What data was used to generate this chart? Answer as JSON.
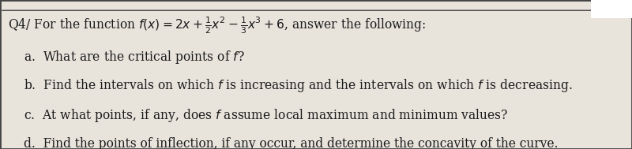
{
  "bg_color": "#c8c4bc",
  "box_color": "#e8e4dc",
  "border_color": "#444444",
  "title_line1": "Q4/ For the function $f(x) = 2x + \\frac{1}{2}x^2 - \\frac{1}{3}x^3 + 6$, answer the following:",
  "item_a": "a.  What are the critical points of $f$?",
  "item_b": "b.  Find the intervals on which $f$ is increasing and the intervals on which $f$ is decreasing.",
  "item_c": "c.  At what points, if any, does $f$ assume local maximum and minimum values?",
  "item_d": "d.  Find the points of inflection, if any occur, and determine the concavity of the curve.",
  "title_fontsize": 11.2,
  "body_fontsize": 11.2,
  "text_color": "#1a1a1a"
}
